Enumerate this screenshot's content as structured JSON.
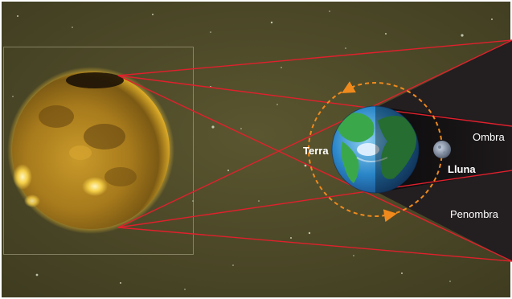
{
  "labels": {
    "earth": "Terra",
    "moon": "Lluna",
    "umbra": "Ombra",
    "penumbra": "Penombra"
  },
  "colors": {
    "space": "#4a4628",
    "border": "#ffffff",
    "sun_core": "#f2c230",
    "sun_edge": "#6b4d10",
    "rays": "#e0202c",
    "umbra": "#121012",
    "penumbra": "#2a2426",
    "orbit": "#f08a1c",
    "ocean": "#2a86c8",
    "land": "#3aa84a"
  },
  "icons": [
    "sun-image",
    "earth-globe",
    "moon-image",
    "orbit-arrow-icon"
  ]
}
